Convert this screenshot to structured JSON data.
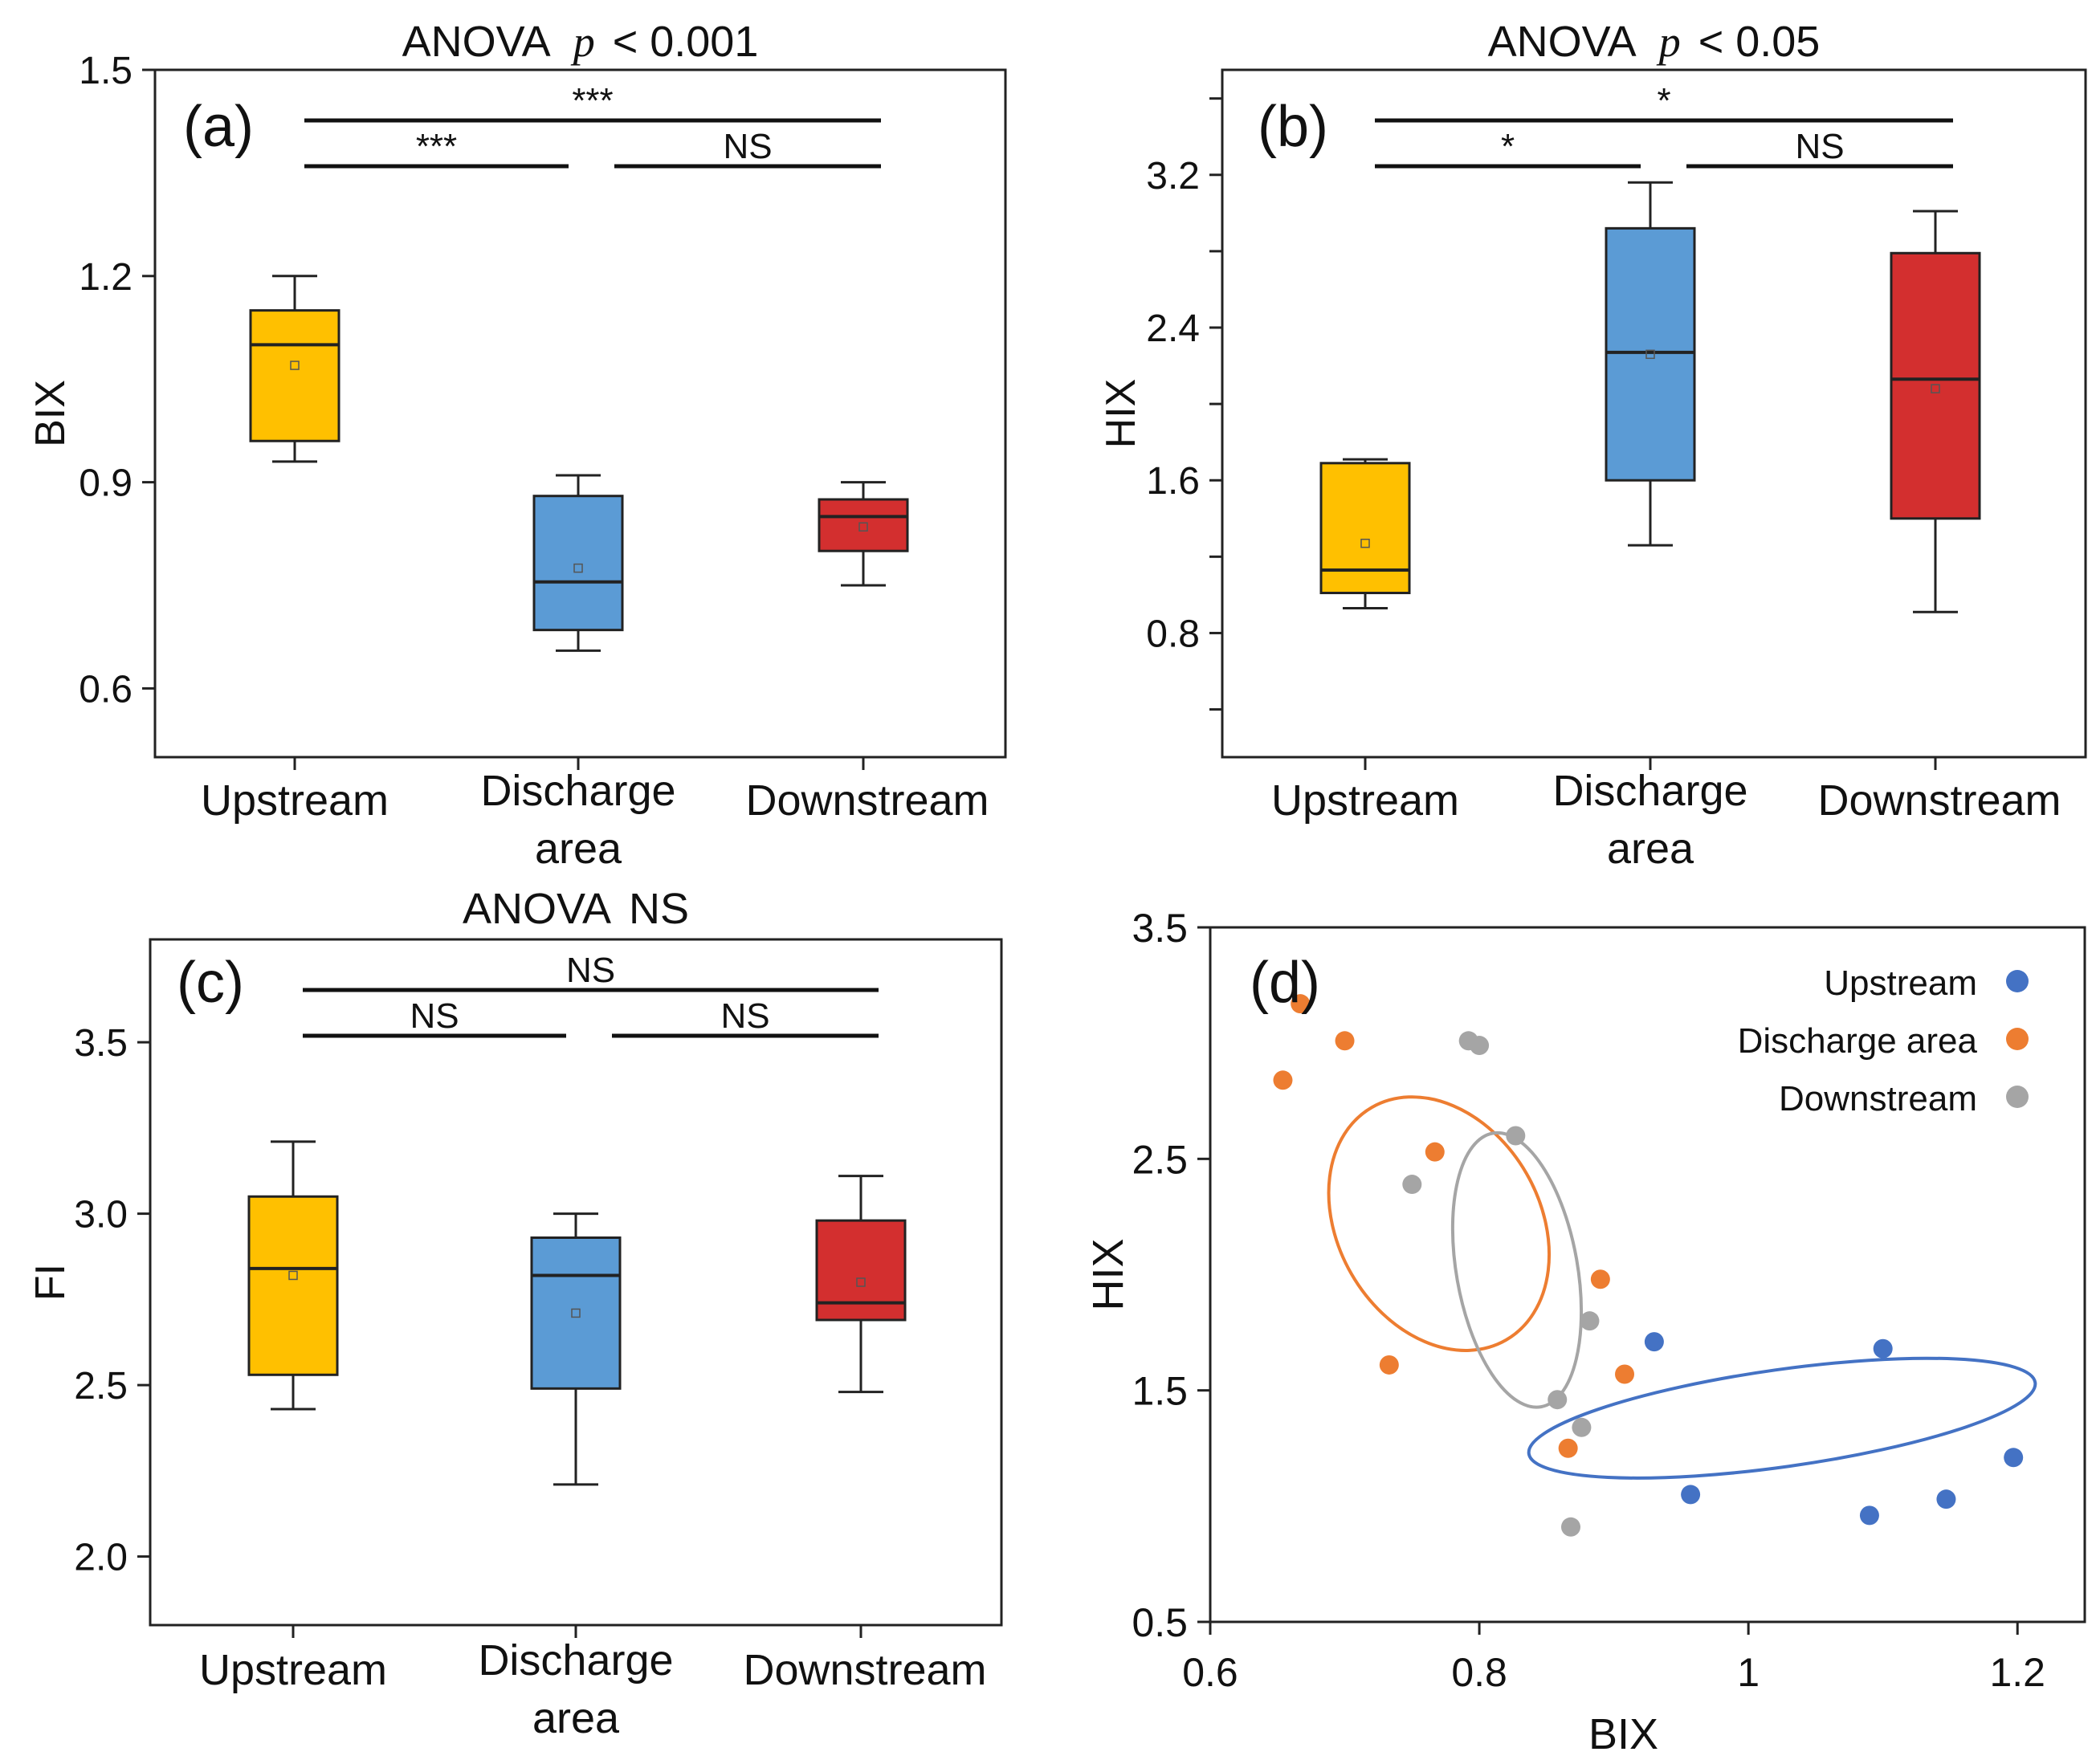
{
  "chart_data": [
    {
      "id": "a",
      "type": "box",
      "panel_label": "(a)",
      "title_prefix": "ANOVA",
      "title_p": "p",
      "title_suffix": "< 0.001",
      "ylabel": "BIX",
      "ylim": [
        0.5,
        1.5
      ],
      "yticks": [
        0.6,
        0.9,
        1.2,
        1.5
      ],
      "ytick_labels": [
        "0.6",
        "0.9",
        "1.2",
        "1.5"
      ],
      "categories": [
        "Upstream",
        "Discharge area",
        "Downstream"
      ],
      "category_lines": [
        [
          "Upstream"
        ],
        [
          "Discharge",
          "area"
        ],
        [
          "Downstream"
        ]
      ],
      "boxes": [
        {
          "name": "Upstream",
          "color": "#FFC000",
          "whisker_low": 0.93,
          "q1": 0.96,
          "median": 1.1,
          "q3": 1.15,
          "whisker_high": 1.2,
          "mean": 1.07
        },
        {
          "name": "Discharge area",
          "color": "#5B9BD5",
          "whisker_low": 0.655,
          "q1": 0.685,
          "median": 0.755,
          "q3": 0.88,
          "whisker_high": 0.91,
          "mean": 0.775
        },
        {
          "name": "Downstream",
          "color": "#D32F2F",
          "whisker_low": 0.75,
          "q1": 0.8,
          "median": 0.85,
          "q3": 0.875,
          "whisker_high": 0.9,
          "mean": 0.835
        }
      ],
      "comparisons": [
        {
          "from": 0,
          "to": 2,
          "label": "***",
          "level": 1
        },
        {
          "from": 0,
          "to": 1,
          "label": "***",
          "level": 0
        },
        {
          "from": 1,
          "to": 2,
          "label": "NS",
          "level": 0
        }
      ]
    },
    {
      "id": "b",
      "type": "box",
      "panel_label": "(b)",
      "title_prefix": "ANOVA",
      "title_p": "p",
      "title_suffix": "< 0.05",
      "ylabel": "HIX",
      "ylim": [
        0.15,
        3.75
      ],
      "yticks": [
        0.4,
        0.8,
        1.2,
        1.6,
        2.0,
        2.4,
        2.8,
        3.2,
        3.6
      ],
      "ytick_labels": [
        "",
        "0.8",
        "",
        "1.6",
        "",
        "2.4",
        "",
        "3.2",
        ""
      ],
      "categories": [
        "Upstream",
        "Discharge area",
        "Downstream"
      ],
      "category_lines": [
        [
          "Upstream"
        ],
        [
          "Discharge",
          "area"
        ],
        [
          "Downstream"
        ]
      ],
      "boxes": [
        {
          "name": "Upstream",
          "color": "#FFC000",
          "whisker_low": 0.93,
          "q1": 1.01,
          "median": 1.13,
          "q3": 1.69,
          "whisker_high": 1.71,
          "mean": 1.27
        },
        {
          "name": "Discharge area",
          "color": "#5B9BD5",
          "whisker_low": 1.26,
          "q1": 1.6,
          "median": 2.27,
          "q3": 2.92,
          "whisker_high": 3.16,
          "mean": 2.26
        },
        {
          "name": "Downstream",
          "color": "#D32F2F",
          "whisker_low": 0.91,
          "q1": 1.4,
          "median": 2.13,
          "q3": 2.79,
          "whisker_high": 3.01,
          "mean": 2.08
        }
      ],
      "comparisons": [
        {
          "from": 0,
          "to": 2,
          "label": "*",
          "level": 1
        },
        {
          "from": 0,
          "to": 1,
          "label": "*",
          "level": 0
        },
        {
          "from": 1,
          "to": 2,
          "label": "NS",
          "level": 0
        }
      ]
    },
    {
      "id": "c",
      "type": "box",
      "panel_label": "(c)",
      "title_prefix": "ANOVA",
      "title_p": "",
      "title_suffix": "NS",
      "ylabel": "FI",
      "ylim": [
        1.8,
        3.8
      ],
      "yticks": [
        2.0,
        2.5,
        3.0,
        3.5
      ],
      "ytick_labels": [
        "2.0",
        "2.5",
        "3.0",
        "3.5"
      ],
      "categories": [
        "Upstream",
        "Discharge area",
        "Downstream"
      ],
      "category_lines": [
        [
          "Upstream"
        ],
        [
          "Discharge",
          "area"
        ],
        [
          "Downstream"
        ]
      ],
      "boxes": [
        {
          "name": "Upstream",
          "color": "#FFC000",
          "whisker_low": 2.43,
          "q1": 2.53,
          "median": 2.84,
          "q3": 3.05,
          "whisker_high": 3.21,
          "mean": 2.82
        },
        {
          "name": "Discharge area",
          "color": "#5B9BD5",
          "whisker_low": 2.21,
          "q1": 2.49,
          "median": 2.82,
          "q3": 2.93,
          "whisker_high": 3.0,
          "mean": 2.71
        },
        {
          "name": "Downstream",
          "color": "#D32F2F",
          "whisker_low": 2.48,
          "q1": 2.69,
          "median": 2.74,
          "q3": 2.98,
          "whisker_high": 3.11,
          "mean": 2.8
        }
      ],
      "comparisons": [
        {
          "from": 0,
          "to": 2,
          "label": "NS",
          "level": 1
        },
        {
          "from": 0,
          "to": 1,
          "label": "NS",
          "level": 0
        },
        {
          "from": 1,
          "to": 2,
          "label": "NS",
          "level": 0
        }
      ]
    },
    {
      "id": "d",
      "type": "scatter",
      "panel_label": "(d)",
      "xlabel": "BIX",
      "ylabel": "HIX",
      "xlim": [
        0.6,
        1.25
      ],
      "ylim": [
        0.5,
        3.5
      ],
      "xticks": [
        0.6,
        0.8,
        1.0,
        1.2
      ],
      "xtick_labels": [
        "0.6",
        "0.8",
        "1",
        "1.2"
      ],
      "yticks": [
        0.5,
        1.5,
        2.5,
        3.5
      ],
      "ytick_labels": [
        "0.5",
        "1.5",
        "2.5",
        "3.5"
      ],
      "legend_position": "top-right",
      "series": [
        {
          "name": "Upstream",
          "color": "#4472C4",
          "points": [
            [
              0.93,
              1.71
            ],
            [
              1.1,
              1.68
            ],
            [
              1.197,
              1.21
            ],
            [
              0.957,
              1.05
            ],
            [
              1.09,
              0.96
            ],
            [
              1.147,
              1.03
            ]
          ],
          "ellipse": {
            "cx": 1.025,
            "cy": 1.38,
            "rx": 0.19,
            "ry": 0.42,
            "angle_deg": -8
          }
        },
        {
          "name": "Discharge area",
          "color": "#ED7D31",
          "points": [
            [
              0.667,
              3.17
            ],
            [
              0.7,
              3.01
            ],
            [
              0.654,
              2.84
            ],
            [
              0.767,
              2.53
            ],
            [
              0.89,
              1.98
            ],
            [
              0.733,
              1.61
            ],
            [
              0.908,
              1.57
            ],
            [
              0.866,
              1.25
            ]
          ],
          "ellipse": {
            "cx": 0.77,
            "cy": 2.22,
            "rx": 0.075,
            "ry": 1.16,
            "angle_deg": -30
          }
        },
        {
          "name": "Downstream",
          "color": "#A5A5A5",
          "points": [
            [
              0.792,
              3.01
            ],
            [
              0.8,
              2.99
            ],
            [
              0.827,
              2.6
            ],
            [
              0.75,
              2.39
            ],
            [
              0.882,
              1.8
            ],
            [
              0.858,
              1.46
            ],
            [
              0.876,
              1.34
            ],
            [
              0.868,
              0.91
            ]
          ],
          "ellipse": {
            "cx": 0.828,
            "cy": 2.02,
            "rx": 0.045,
            "ry": 1.2,
            "angle_deg": -10
          }
        }
      ]
    }
  ]
}
